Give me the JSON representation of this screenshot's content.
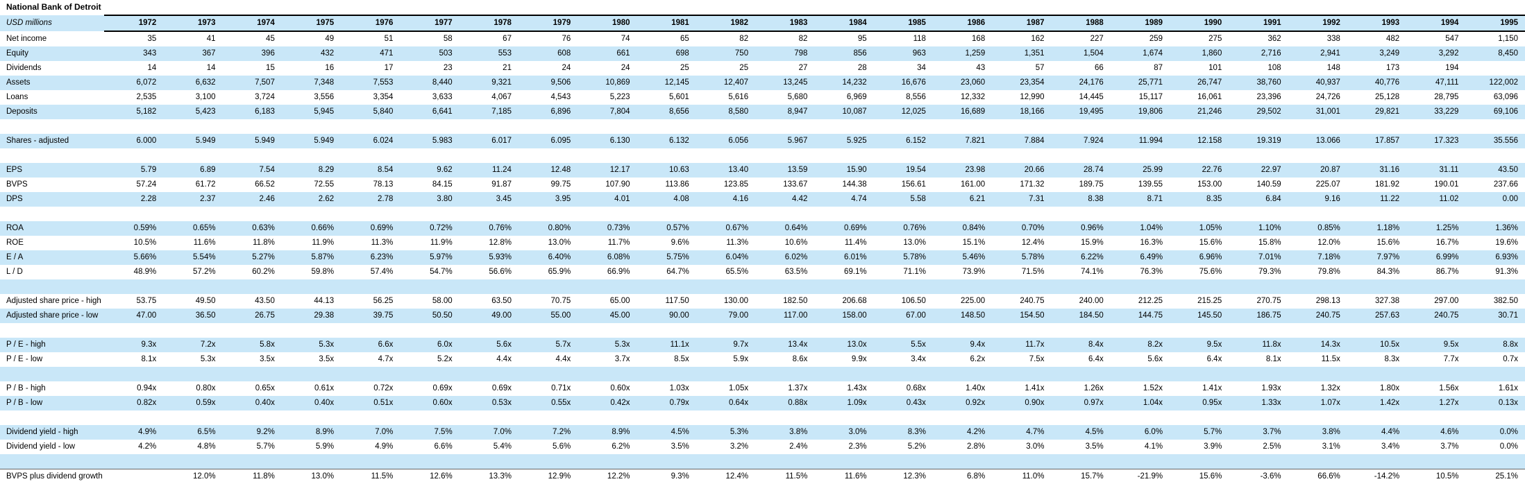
{
  "title": "National Bank of Detroit",
  "units_label": "USD millions",
  "colors": {
    "row_band": "#c9e7f8",
    "header_border": "#000000",
    "growth_divider": "#666666",
    "text": "#000000"
  },
  "years": [
    "1972",
    "1973",
    "1974",
    "1975",
    "1976",
    "1977",
    "1978",
    "1979",
    "1980",
    "1981",
    "1982",
    "1983",
    "1984",
    "1985",
    "1986",
    "1987",
    "1988",
    "1989",
    "1990",
    "1991",
    "1992",
    "1993",
    "1994",
    "1995"
  ],
  "rows": [
    {
      "label": "Net income",
      "shaded": false,
      "blank": false,
      "values": [
        "35",
        "41",
        "45",
        "49",
        "51",
        "58",
        "67",
        "76",
        "74",
        "65",
        "82",
        "82",
        "95",
        "118",
        "168",
        "162",
        "227",
        "259",
        "275",
        "362",
        "338",
        "482",
        "547",
        "1,150"
      ]
    },
    {
      "label": "Equity",
      "shaded": true,
      "blank": false,
      "values": [
        "343",
        "367",
        "396",
        "432",
        "471",
        "503",
        "553",
        "608",
        "661",
        "698",
        "750",
        "798",
        "856",
        "963",
        "1,259",
        "1,351",
        "1,504",
        "1,674",
        "1,860",
        "2,716",
        "2,941",
        "3,249",
        "3,292",
        "8,450"
      ]
    },
    {
      "label": "Dividends",
      "shaded": false,
      "blank": false,
      "values": [
        "14",
        "14",
        "15",
        "16",
        "17",
        "23",
        "21",
        "24",
        "24",
        "25",
        "25",
        "27",
        "28",
        "34",
        "43",
        "57",
        "66",
        "87",
        "101",
        "108",
        "148",
        "173",
        "194",
        ""
      ]
    },
    {
      "label": "Assets",
      "shaded": true,
      "blank": false,
      "values": [
        "6,072",
        "6,632",
        "7,507",
        "7,348",
        "7,553",
        "8,440",
        "9,321",
        "9,506",
        "10,869",
        "12,145",
        "12,407",
        "13,245",
        "14,232",
        "16,676",
        "23,060",
        "23,354",
        "24,176",
        "25,771",
        "26,747",
        "38,760",
        "40,937",
        "40,776",
        "47,111",
        "122,002"
      ]
    },
    {
      "label": "Loans",
      "shaded": false,
      "blank": false,
      "values": [
        "2,535",
        "3,100",
        "3,724",
        "3,556",
        "3,354",
        "3,633",
        "4,067",
        "4,543",
        "5,223",
        "5,601",
        "5,616",
        "5,680",
        "6,969",
        "8,556",
        "12,332",
        "12,990",
        "14,445",
        "15,117",
        "16,061",
        "23,396",
        "24,726",
        "25,128",
        "28,795",
        "63,096"
      ]
    },
    {
      "label": "Deposits",
      "shaded": true,
      "blank": false,
      "values": [
        "5,182",
        "5,423",
        "6,183",
        "5,945",
        "5,840",
        "6,641",
        "7,185",
        "6,896",
        "7,804",
        "8,656",
        "8,580",
        "8,947",
        "10,087",
        "12,025",
        "16,689",
        "18,166",
        "19,495",
        "19,806",
        "21,246",
        "29,502",
        "31,001",
        "29,821",
        "33,229",
        "69,106"
      ]
    },
    {
      "label": "",
      "shaded": false,
      "blank": true,
      "values": []
    },
    {
      "label": "Shares - adjusted",
      "shaded": true,
      "blank": false,
      "values": [
        "6.000",
        "5.949",
        "5.949",
        "5.949",
        "6.024",
        "5.983",
        "6.017",
        "6.095",
        "6.130",
        "6.132",
        "6.056",
        "5.967",
        "5.925",
        "6.152",
        "7.821",
        "7.884",
        "7.924",
        "11.994",
        "12.158",
        "19.319",
        "13.066",
        "17.857",
        "17.323",
        "35.556"
      ]
    },
    {
      "label": "",
      "shaded": false,
      "blank": true,
      "values": []
    },
    {
      "label": "EPS",
      "shaded": true,
      "blank": false,
      "values": [
        "5.79",
        "6.89",
        "7.54",
        "8.29",
        "8.54",
        "9.62",
        "11.24",
        "12.48",
        "12.17",
        "10.63",
        "13.40",
        "13.59",
        "15.90",
        "19.54",
        "23.98",
        "20.66",
        "28.74",
        "25.99",
        "22.76",
        "22.97",
        "20.87",
        "31.16",
        "31.11",
        "43.50"
      ]
    },
    {
      "label": "BVPS",
      "shaded": false,
      "blank": false,
      "values": [
        "57.24",
        "61.72",
        "66.52",
        "72.55",
        "78.13",
        "84.15",
        "91.87",
        "99.75",
        "107.90",
        "113.86",
        "123.85",
        "133.67",
        "144.38",
        "156.61",
        "161.00",
        "171.32",
        "189.75",
        "139.55",
        "153.00",
        "140.59",
        "225.07",
        "181.92",
        "190.01",
        "237.66"
      ]
    },
    {
      "label": "DPS",
      "shaded": true,
      "blank": false,
      "values": [
        "2.28",
        "2.37",
        "2.46",
        "2.62",
        "2.78",
        "3.80",
        "3.45",
        "3.95",
        "4.01",
        "4.08",
        "4.16",
        "4.42",
        "4.74",
        "5.58",
        "6.21",
        "7.31",
        "8.38",
        "8.71",
        "8.35",
        "6.84",
        "9.16",
        "11.22",
        "11.02",
        "0.00"
      ]
    },
    {
      "label": "",
      "shaded": false,
      "blank": true,
      "values": []
    },
    {
      "label": "ROA",
      "shaded": true,
      "blank": false,
      "values": [
        "0.59%",
        "0.65%",
        "0.63%",
        "0.66%",
        "0.69%",
        "0.72%",
        "0.76%",
        "0.80%",
        "0.73%",
        "0.57%",
        "0.67%",
        "0.64%",
        "0.69%",
        "0.76%",
        "0.84%",
        "0.70%",
        "0.96%",
        "1.04%",
        "1.05%",
        "1.10%",
        "0.85%",
        "1.18%",
        "1.25%",
        "1.36%"
      ]
    },
    {
      "label": "ROE",
      "shaded": false,
      "blank": false,
      "values": [
        "10.5%",
        "11.6%",
        "11.8%",
        "11.9%",
        "11.3%",
        "11.9%",
        "12.8%",
        "13.0%",
        "11.7%",
        "9.6%",
        "11.3%",
        "10.6%",
        "11.4%",
        "13.0%",
        "15.1%",
        "12.4%",
        "15.9%",
        "16.3%",
        "15.6%",
        "15.8%",
        "12.0%",
        "15.6%",
        "16.7%",
        "19.6%"
      ]
    },
    {
      "label": "E / A",
      "shaded": true,
      "blank": false,
      "values": [
        "5.66%",
        "5.54%",
        "5.27%",
        "5.87%",
        "6.23%",
        "5.97%",
        "5.93%",
        "6.40%",
        "6.08%",
        "5.75%",
        "6.04%",
        "6.02%",
        "6.01%",
        "5.78%",
        "5.46%",
        "5.78%",
        "6.22%",
        "6.49%",
        "6.96%",
        "7.01%",
        "7.18%",
        "7.97%",
        "6.99%",
        "6.93%"
      ]
    },
    {
      "label": "L / D",
      "shaded": false,
      "blank": false,
      "values": [
        "48.9%",
        "57.2%",
        "60.2%",
        "59.8%",
        "57.4%",
        "54.7%",
        "56.6%",
        "65.9%",
        "66.9%",
        "64.7%",
        "65.5%",
        "63.5%",
        "69.1%",
        "71.1%",
        "73.9%",
        "71.5%",
        "74.1%",
        "76.3%",
        "75.6%",
        "79.3%",
        "79.8%",
        "84.3%",
        "86.7%",
        "91.3%"
      ]
    },
    {
      "label": "",
      "shaded": true,
      "blank": true,
      "values": []
    },
    {
      "label": "Adjusted share price - high",
      "shaded": false,
      "blank": false,
      "values": [
        "53.75",
        "49.50",
        "43.50",
        "44.13",
        "56.25",
        "58.00",
        "63.50",
        "70.75",
        "65.00",
        "117.50",
        "130.00",
        "182.50",
        "206.68",
        "106.50",
        "225.00",
        "240.75",
        "240.00",
        "212.25",
        "215.25",
        "270.75",
        "298.13",
        "327.38",
        "297.00",
        "382.50"
      ]
    },
    {
      "label": "Adjusted share price - low",
      "shaded": true,
      "blank": false,
      "values": [
        "47.00",
        "36.50",
        "26.75",
        "29.38",
        "39.75",
        "50.50",
        "49.00",
        "55.00",
        "45.00",
        "90.00",
        "79.00",
        "117.00",
        "158.00",
        "67.00",
        "148.50",
        "154.50",
        "184.50",
        "144.75",
        "145.50",
        "186.75",
        "240.75",
        "257.63",
        "240.75",
        "30.71"
      ]
    },
    {
      "label": "",
      "shaded": false,
      "blank": true,
      "values": []
    },
    {
      "label": "P / E - high",
      "shaded": true,
      "blank": false,
      "values": [
        "9.3x",
        "7.2x",
        "5.8x",
        "5.3x",
        "6.6x",
        "6.0x",
        "5.6x",
        "5.7x",
        "5.3x",
        "11.1x",
        "9.7x",
        "13.4x",
        "13.0x",
        "5.5x",
        "9.4x",
        "11.7x",
        "8.4x",
        "8.2x",
        "9.5x",
        "11.8x",
        "14.3x",
        "10.5x",
        "9.5x",
        "8.8x"
      ]
    },
    {
      "label": "P / E - low",
      "shaded": false,
      "blank": false,
      "values": [
        "8.1x",
        "5.3x",
        "3.5x",
        "3.5x",
        "4.7x",
        "5.2x",
        "4.4x",
        "4.4x",
        "3.7x",
        "8.5x",
        "5.9x",
        "8.6x",
        "9.9x",
        "3.4x",
        "6.2x",
        "7.5x",
        "6.4x",
        "5.6x",
        "6.4x",
        "8.1x",
        "11.5x",
        "8.3x",
        "7.7x",
        "0.7x"
      ]
    },
    {
      "label": "",
      "shaded": true,
      "blank": true,
      "values": []
    },
    {
      "label": "P / B - high",
      "shaded": false,
      "blank": false,
      "values": [
        "0.94x",
        "0.80x",
        "0.65x",
        "0.61x",
        "0.72x",
        "0.69x",
        "0.69x",
        "0.71x",
        "0.60x",
        "1.03x",
        "1.05x",
        "1.37x",
        "1.43x",
        "0.68x",
        "1.40x",
        "1.41x",
        "1.26x",
        "1.52x",
        "1.41x",
        "1.93x",
        "1.32x",
        "1.80x",
        "1.56x",
        "1.61x"
      ]
    },
    {
      "label": "P / B - low",
      "shaded": true,
      "blank": false,
      "values": [
        "0.82x",
        "0.59x",
        "0.40x",
        "0.40x",
        "0.51x",
        "0.60x",
        "0.53x",
        "0.55x",
        "0.42x",
        "0.79x",
        "0.64x",
        "0.88x",
        "1.09x",
        "0.43x",
        "0.92x",
        "0.90x",
        "0.97x",
        "1.04x",
        "0.95x",
        "1.33x",
        "1.07x",
        "1.42x",
        "1.27x",
        "0.13x"
      ]
    },
    {
      "label": "",
      "shaded": false,
      "blank": true,
      "values": []
    },
    {
      "label": "Dividend yield - high",
      "shaded": true,
      "blank": false,
      "values": [
        "4.9%",
        "6.5%",
        "9.2%",
        "8.9%",
        "7.0%",
        "7.5%",
        "7.0%",
        "7.2%",
        "8.9%",
        "4.5%",
        "5.3%",
        "3.8%",
        "3.0%",
        "8.3%",
        "4.2%",
        "4.7%",
        "4.5%",
        "6.0%",
        "5.7%",
        "3.7%",
        "3.8%",
        "4.4%",
        "4.6%",
        "0.0%"
      ]
    },
    {
      "label": "Dividend yield - low",
      "shaded": false,
      "blank": false,
      "values": [
        "4.2%",
        "4.8%",
        "5.7%",
        "5.9%",
        "4.9%",
        "6.6%",
        "5.4%",
        "5.6%",
        "6.2%",
        "3.5%",
        "3.2%",
        "2.4%",
        "2.3%",
        "5.2%",
        "2.8%",
        "3.0%",
        "3.5%",
        "4.1%",
        "3.9%",
        "2.5%",
        "3.1%",
        "3.4%",
        "3.7%",
        "0.0%"
      ]
    },
    {
      "label": "",
      "shaded": true,
      "blank": true,
      "values": []
    },
    {
      "label": "BVPS plus dividend growth",
      "shaded": false,
      "blank": false,
      "top_border": true,
      "values": [
        "",
        "12.0%",
        "11.8%",
        "13.0%",
        "11.5%",
        "12.6%",
        "13.3%",
        "12.9%",
        "12.2%",
        "9.3%",
        "12.4%",
        "11.5%",
        "11.6%",
        "12.3%",
        "6.8%",
        "11.0%",
        "15.7%",
        "-21.9%",
        "15.6%",
        "-3.6%",
        "66.6%",
        "-14.2%",
        "10.5%",
        "25.1%"
      ]
    }
  ]
}
